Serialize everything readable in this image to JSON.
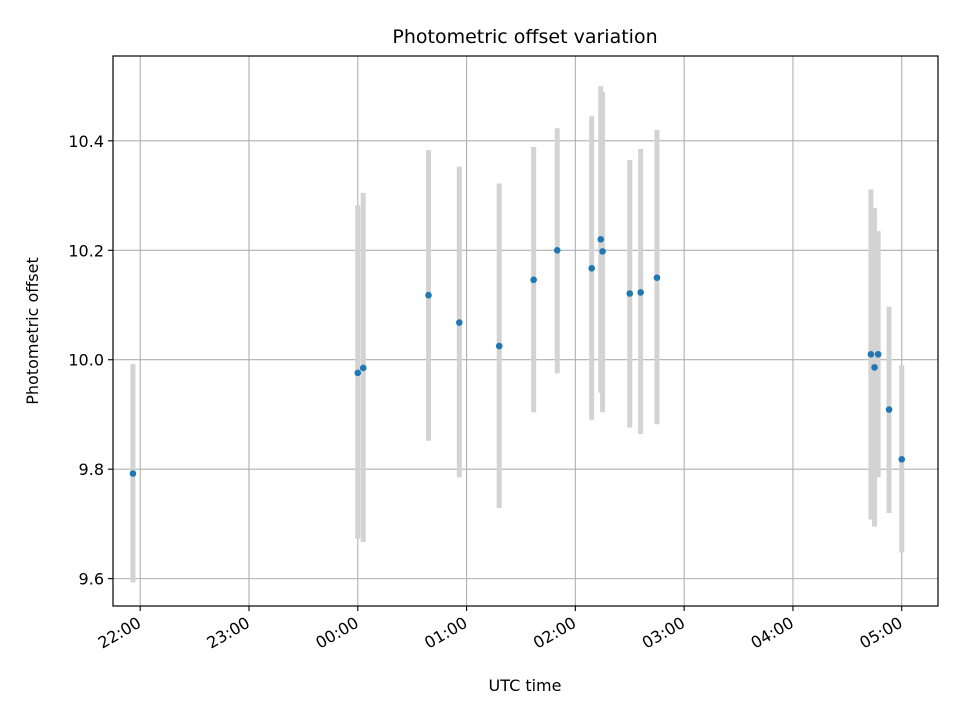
{
  "chart_data": {
    "type": "scatter",
    "title": "Photometric offset variation",
    "xlabel": "UTC time",
    "ylabel": "Photometric offset",
    "x_axis_kind": "time (UTC)",
    "xlim": [
      "21:45",
      "05:20"
    ],
    "ylim": [
      9.55,
      10.555
    ],
    "grid": true,
    "x_ticks": [
      "22:00",
      "23:00",
      "00:00",
      "01:00",
      "02:00",
      "03:00",
      "04:00",
      "05:00"
    ],
    "y_ticks": [
      "9.6",
      "9.8",
      "10.0",
      "10.2",
      "10.4"
    ],
    "y_tick_values": [
      9.6,
      9.8,
      10.0,
      10.2,
      10.4
    ],
    "colors": {
      "points": "#1f77b4",
      "error_bars": "#d3d3d3",
      "grid": "#b0b0b0"
    },
    "series": [
      {
        "marker": "point",
        "error_bars": true,
        "points": [
          {
            "x": "21:56",
            "y": 9.792,
            "err_low": 9.593,
            "err_high": 9.992
          },
          {
            "x": "00:00",
            "y": 9.976,
            "err_low": 9.673,
            "err_high": 10.282
          },
          {
            "x": "00:03",
            "y": 9.985,
            "err_low": 9.667,
            "err_high": 10.305
          },
          {
            "x": "00:39",
            "y": 10.118,
            "err_low": 9.852,
            "err_high": 10.383
          },
          {
            "x": "00:56",
            "y": 10.068,
            "err_low": 9.785,
            "err_high": 10.353
          },
          {
            "x": "01:18",
            "y": 10.025,
            "err_low": 9.729,
            "err_high": 10.322
          },
          {
            "x": "01:37",
            "y": 10.146,
            "err_low": 9.904,
            "err_high": 10.389
          },
          {
            "x": "01:50",
            "y": 10.2,
            "err_low": 9.975,
            "err_high": 10.423
          },
          {
            "x": "02:09",
            "y": 10.167,
            "err_low": 9.89,
            "err_high": 10.445
          },
          {
            "x": "02:14",
            "y": 10.22,
            "err_low": 9.94,
            "err_high": 10.5
          },
          {
            "x": "02:15",
            "y": 10.198,
            "err_low": 9.904,
            "err_high": 10.49
          },
          {
            "x": "02:30",
            "y": 10.121,
            "err_low": 9.876,
            "err_high": 10.365
          },
          {
            "x": "02:36",
            "y": 10.123,
            "err_low": 9.864,
            "err_high": 10.385
          },
          {
            "x": "02:45",
            "y": 10.15,
            "err_low": 9.882,
            "err_high": 10.42
          },
          {
            "x": "04:43",
            "y": 10.01,
            "err_low": 9.708,
            "err_high": 10.311
          },
          {
            "x": "04:45",
            "y": 9.986,
            "err_low": 9.695,
            "err_high": 10.277
          },
          {
            "x": "04:47",
            "y": 10.01,
            "err_low": 9.785,
            "err_high": 10.235
          },
          {
            "x": "04:53",
            "y": 9.909,
            "err_low": 9.72,
            "err_high": 10.097
          },
          {
            "x": "05:00",
            "y": 9.818,
            "err_low": 9.648,
            "err_high": 9.99
          }
        ]
      }
    ]
  }
}
